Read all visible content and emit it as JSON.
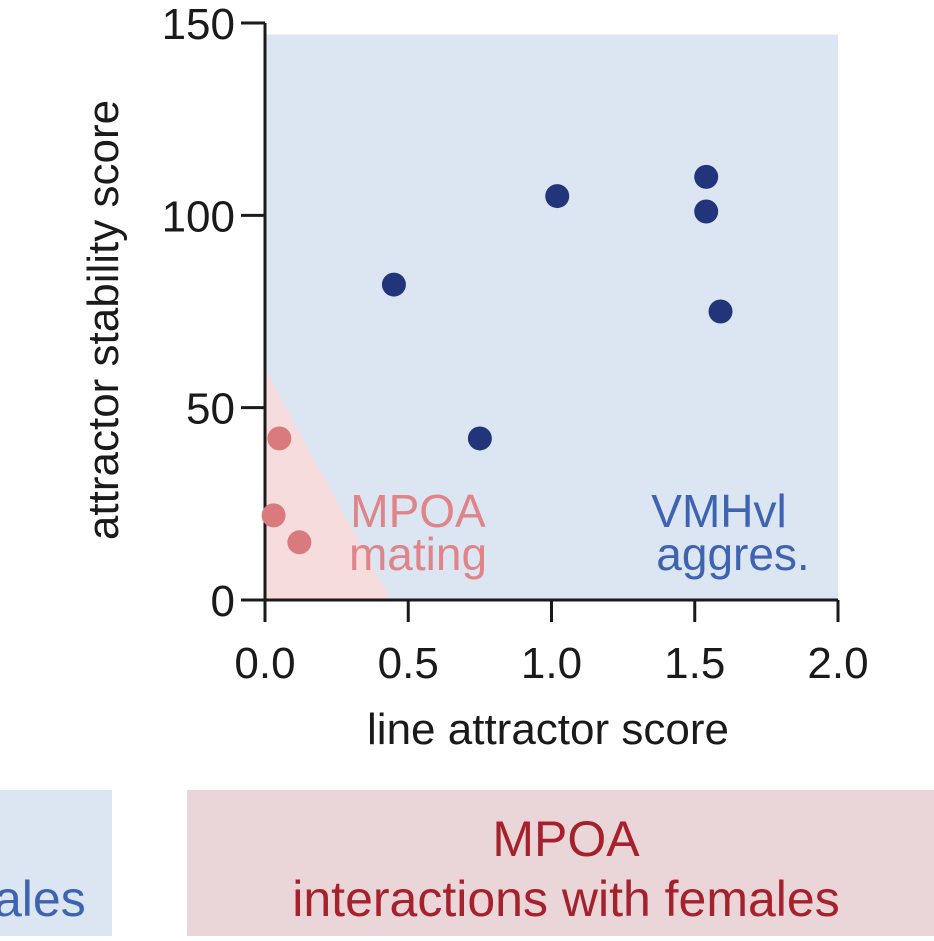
{
  "chart_data": {
    "type": "scatter",
    "xlabel": "line attractor score",
    "ylabel": "attractor stability score",
    "xlim": [
      0,
      2.0
    ],
    "ylim": [
      0,
      150
    ],
    "xticks": [
      "0.0",
      "0.5",
      "1.0",
      "1.5",
      "2.0"
    ],
    "yticks": [
      "0",
      "50",
      "100",
      "150"
    ],
    "series": [
      {
        "name": "MPOA mating",
        "color": "#d97a7e",
        "points": [
          {
            "x": 0.05,
            "y": 42
          },
          {
            "x": 0.03,
            "y": 22
          },
          {
            "x": 0.12,
            "y": 15
          }
        ]
      },
      {
        "name": "VMHvl aggres.",
        "color": "#22357a",
        "points": [
          {
            "x": 0.45,
            "y": 82
          },
          {
            "x": 0.75,
            "y": 42
          },
          {
            "x": 1.02,
            "y": 105
          },
          {
            "x": 1.54,
            "y": 110
          },
          {
            "x": 1.54,
            "y": 101
          },
          {
            "x": 1.59,
            "y": 75
          }
        ]
      }
    ],
    "regions": [
      {
        "name": "VMHvl",
        "lines": [
          "VMHvl",
          "aggres."
        ],
        "color": "#dce6f2",
        "label_color": "#3e63b0"
      },
      {
        "name": "MPOA",
        "lines": [
          "MPOA",
          "mating"
        ],
        "color": "#f6dcdc",
        "label_color": "#df858a",
        "boundary": [
          [
            0,
            60
          ],
          [
            0.44,
            0
          ]
        ]
      }
    ]
  },
  "banners": {
    "left": {
      "text": "ales",
      "bg": "#dce6f2",
      "color": "#3e63b0"
    },
    "right": {
      "line1": "MPOA",
      "line2": "interactions with females",
      "bg": "#ead6d8",
      "color": "#a5222c"
    }
  }
}
